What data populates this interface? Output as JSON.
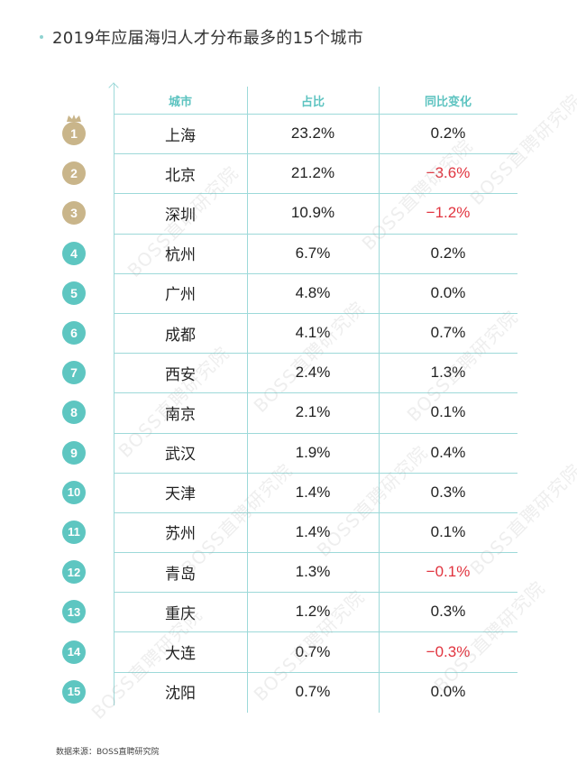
{
  "title": "2019年应届海归人才分布最多的15个城市",
  "colors": {
    "accent": "#8fd3d1",
    "header_text": "#5cc3c0",
    "gold_badge": "#c9b58a",
    "teal_badge": "#5ec6c1",
    "negative": "#e1343f",
    "grid": "#9dd9d9"
  },
  "table": {
    "headers": [
      "城市",
      "占比",
      "同比变化"
    ],
    "rows": [
      {
        "rank": "1",
        "city": "上海",
        "share": "23.2%",
        "change": "0.2%",
        "negative": false,
        "top3": true
      },
      {
        "rank": "2",
        "city": "北京",
        "share": "21.2%",
        "change": "−3.6%",
        "negative": true,
        "top3": true
      },
      {
        "rank": "3",
        "city": "深圳",
        "share": "10.9%",
        "change": "−1.2%",
        "negative": true,
        "top3": true
      },
      {
        "rank": "4",
        "city": "杭州",
        "share": "6.7%",
        "change": "0.2%",
        "negative": false,
        "top3": false
      },
      {
        "rank": "5",
        "city": "广州",
        "share": "4.8%",
        "change": "0.0%",
        "negative": false,
        "top3": false
      },
      {
        "rank": "6",
        "city": "成都",
        "share": "4.1%",
        "change": "0.7%",
        "negative": false,
        "top3": false
      },
      {
        "rank": "7",
        "city": "西安",
        "share": "2.4%",
        "change": "1.3%",
        "negative": false,
        "top3": false
      },
      {
        "rank": "8",
        "city": "南京",
        "share": "2.1%",
        "change": "0.1%",
        "negative": false,
        "top3": false
      },
      {
        "rank": "9",
        "city": "武汉",
        "share": "1.9%",
        "change": "0.4%",
        "negative": false,
        "top3": false
      },
      {
        "rank": "10",
        "city": "天津",
        "share": "1.4%",
        "change": "0.3%",
        "negative": false,
        "top3": false
      },
      {
        "rank": "11",
        "city": "苏州",
        "share": "1.4%",
        "change": "0.1%",
        "negative": false,
        "top3": false
      },
      {
        "rank": "12",
        "city": "青岛",
        "share": "1.3%",
        "change": "−0.1%",
        "negative": true,
        "top3": false
      },
      {
        "rank": "13",
        "city": "重庆",
        "share": "1.2%",
        "change": "0.3%",
        "negative": false,
        "top3": false
      },
      {
        "rank": "14",
        "city": "大连",
        "share": "0.7%",
        "change": "−0.3%",
        "negative": true,
        "top3": false
      },
      {
        "rank": "15",
        "city": "沈阳",
        "share": "0.7%",
        "change": "0.0%",
        "negative": false,
        "top3": false
      }
    ]
  },
  "watermark_text": "BOSS直聘研究院",
  "footer": "数据来源：BOSS直聘研究院"
}
